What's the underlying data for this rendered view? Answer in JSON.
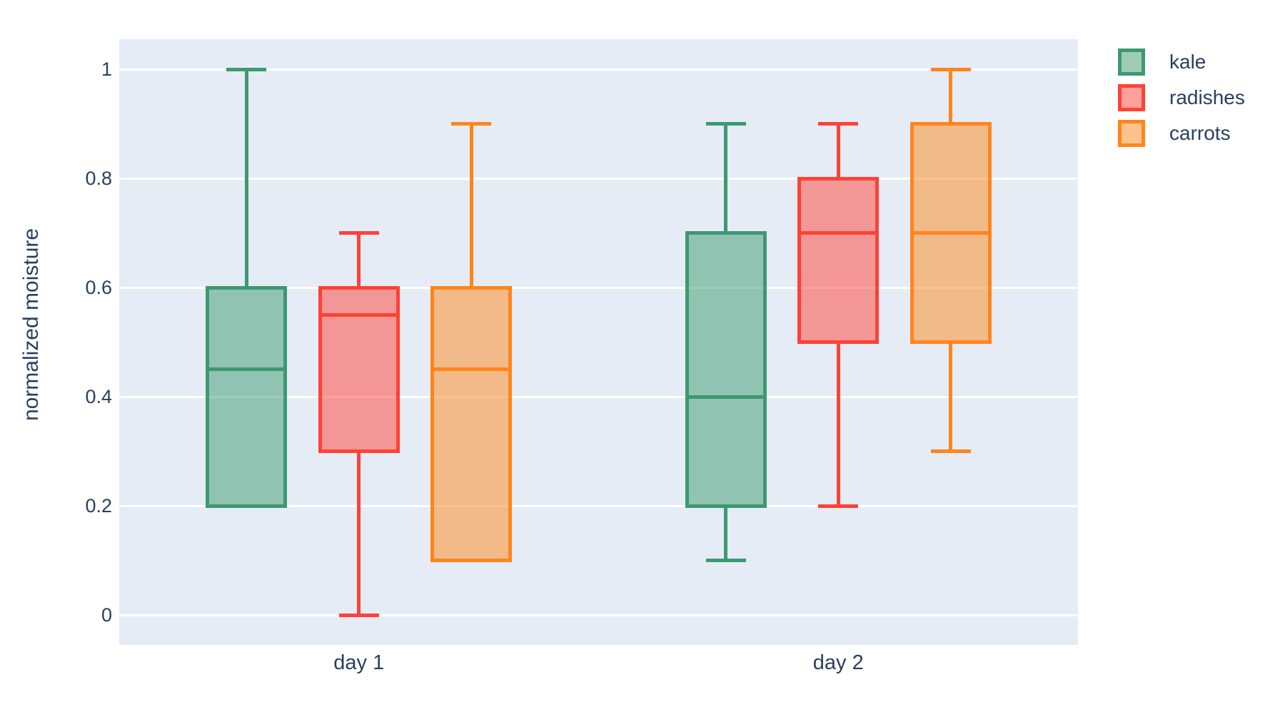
{
  "chart_data": {
    "type": "box",
    "title": "",
    "xlabel": "",
    "ylabel": "normalized moisture",
    "categories": [
      "day 1",
      "day 2"
    ],
    "ytick_values": [
      0,
      0.2,
      0.4,
      0.6,
      0.8,
      1
    ],
    "ylim": [
      -0.06,
      1.06
    ],
    "grid": true,
    "legend_position": "top-right",
    "plot_bg_color": "#E5ECF6",
    "gridline_color": "#FFFFFF",
    "text_color": "#2A3F5F",
    "series": [
      {
        "name": "kale",
        "color": "#3D9970",
        "boxes": [
          {
            "category": "day 1",
            "min": 0.2,
            "q1": 0.2,
            "median": 0.45,
            "q3": 0.6,
            "max": 1.0
          },
          {
            "category": "day 2",
            "min": 0.1,
            "q1": 0.2,
            "median": 0.4,
            "q3": 0.7,
            "max": 0.9
          }
        ]
      },
      {
        "name": "radishes",
        "color": "#FF4136",
        "boxes": [
          {
            "category": "day 1",
            "min": 0.0,
            "q1": 0.3,
            "median": 0.55,
            "q3": 0.6,
            "max": 0.7
          },
          {
            "category": "day 2",
            "min": 0.2,
            "q1": 0.5,
            "median": 0.7,
            "q3": 0.8,
            "max": 0.9
          }
        ]
      },
      {
        "name": "carrots",
        "color": "#FF851B",
        "boxes": [
          {
            "category": "day 1",
            "min": 0.1,
            "q1": 0.1,
            "median": 0.45,
            "q3": 0.6,
            "max": 0.9
          },
          {
            "category": "day 2",
            "min": 0.3,
            "q1": 0.5,
            "median": 0.7,
            "q3": 0.9,
            "max": 1.0
          }
        ]
      }
    ]
  }
}
